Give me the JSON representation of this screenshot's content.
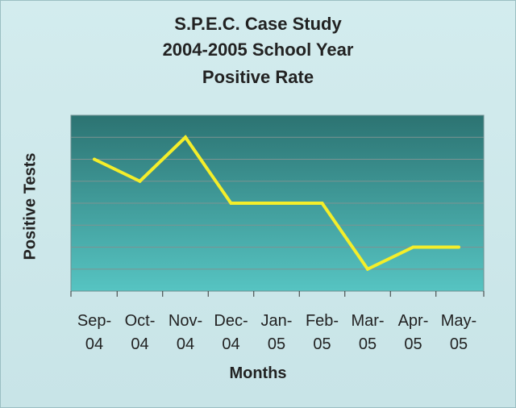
{
  "chart_data": {
    "type": "line",
    "title": [
      "S.P.E.C. Case Study",
      "2004-2005 School Year",
      "Positive Rate"
    ],
    "xlabel": "Months",
    "ylabel": "Positive Tests",
    "categories": [
      [
        "Sep-",
        "04"
      ],
      [
        "Oct-",
        "04"
      ],
      [
        "Nov-",
        "04"
      ],
      [
        "Dec-",
        "04"
      ],
      [
        "Jan-",
        "05"
      ],
      [
        "Feb-",
        "05"
      ],
      [
        "Mar-",
        "05"
      ],
      [
        "Apr-",
        "05"
      ],
      [
        "May-",
        "05"
      ]
    ],
    "series": [
      {
        "values": [
          6,
          5,
          7,
          4,
          4,
          4,
          1,
          2,
          2
        ]
      }
    ],
    "ylim": [
      0,
      8
    ],
    "grid": true,
    "y_tick_labels_shown": false,
    "colors": {
      "line": "#f4ee2a",
      "plot_top": "#2c7372",
      "plot_bottom": "#56c4c2",
      "gridline": "#7d9392",
      "axis": "#333333"
    }
  }
}
